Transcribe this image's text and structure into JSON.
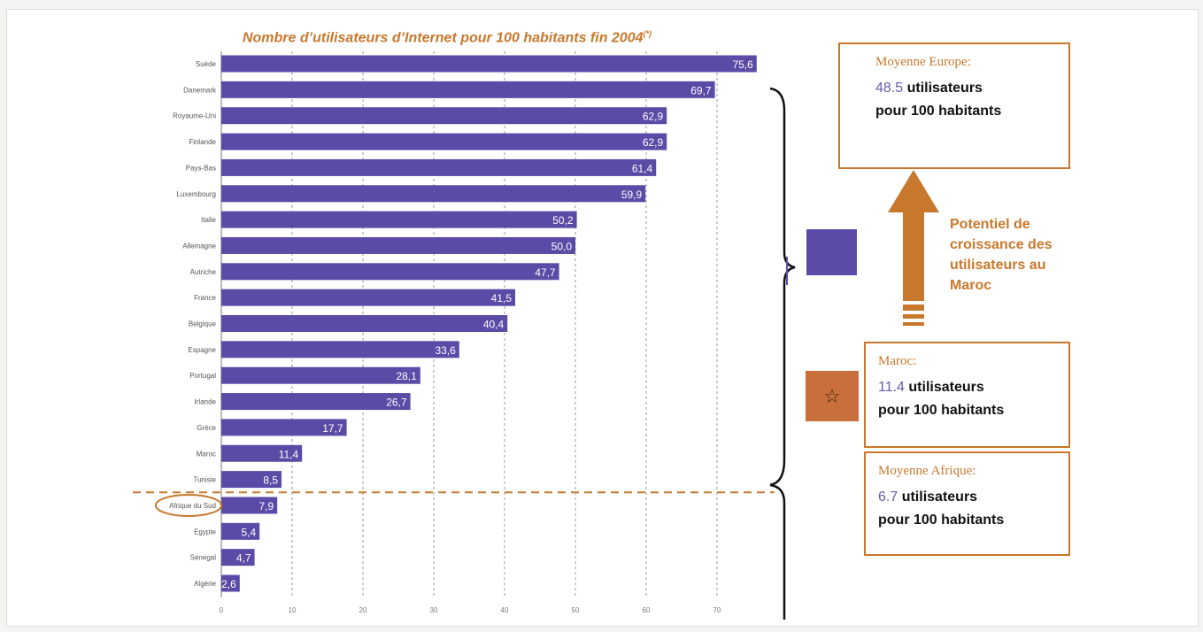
{
  "title_main": "Nombre d’utilisateurs d’Internet pour 100 habitants fin 2004",
  "title_note": "(*)",
  "colors": {
    "bar": "#5b4aa6",
    "accent": "#c8782d",
    "number": "#6a5aa8",
    "flag_eu": "#5b4aa6",
    "flag_ma": "#c86f3c"
  },
  "chart_data": {
    "type": "bar",
    "orientation": "horizontal",
    "title": "Nombre d’utilisateurs d’Internet pour 100 habitants fin 2004",
    "categories": [
      "Suède",
      "Danemark",
      "Royaume-Uni",
      "Finlande",
      "Pays-Bas",
      "Luxembourg",
      "Italie",
      "Allemagne",
      "Autriche",
      "France",
      "Belgique",
      "Espagne",
      "Portugal",
      "Irlande",
      "Grèce",
      "Maroc",
      "Tunisie",
      "Afrique du Sud",
      "Egypte",
      "Sénégal",
      "Algérie"
    ],
    "values": [
      75.6,
      69.7,
      62.9,
      62.9,
      61.4,
      59.9,
      50.2,
      50.0,
      47.7,
      41.5,
      40.4,
      33.6,
      28.1,
      26.7,
      17.7,
      11.4,
      8.5,
      7.9,
      5.4,
      4.7,
      2.6
    ],
    "value_labels": [
      "75,6",
      "69,7",
      "62,9",
      "62,9",
      "61,4",
      "59,9",
      "50,2",
      "50,0",
      "47,7",
      "41,5",
      "40,4",
      "33,6",
      "28,1",
      "26,7",
      "17,7",
      "11,4",
      "8,5",
      "7,9",
      "5,4",
      "4,7",
      "2,6"
    ],
    "xlim": [
      0,
      75
    ],
    "xticks": [
      0,
      10,
      20,
      30,
      40,
      50,
      60,
      70
    ],
    "grid": true,
    "legend": "none",
    "highlighted_category": "Afrique du Sud"
  },
  "europe_box": {
    "label": "Moyenne Europe:",
    "value": "48.5",
    "unit": "utilisateurs",
    "line2": "pour 100 habitants"
  },
  "potential_text": [
    "Potentiel de",
    "croissance des",
    "utilisateurs au",
    "Maroc"
  ],
  "maroc_box": {
    "label": "Maroc:",
    "value": "11.4",
    "unit": "utilisateurs",
    "line2": "pour 100 habitants"
  },
  "afrique_box": {
    "label": "Moyenne Afrique:",
    "value": "6.7",
    "unit": "utilisateurs",
    "line2": "pour 100 habitants"
  },
  "flags": {
    "eu_icon": "eu-flag",
    "maroc_icon": "star-outline",
    "maroc_glyph": "☆"
  }
}
